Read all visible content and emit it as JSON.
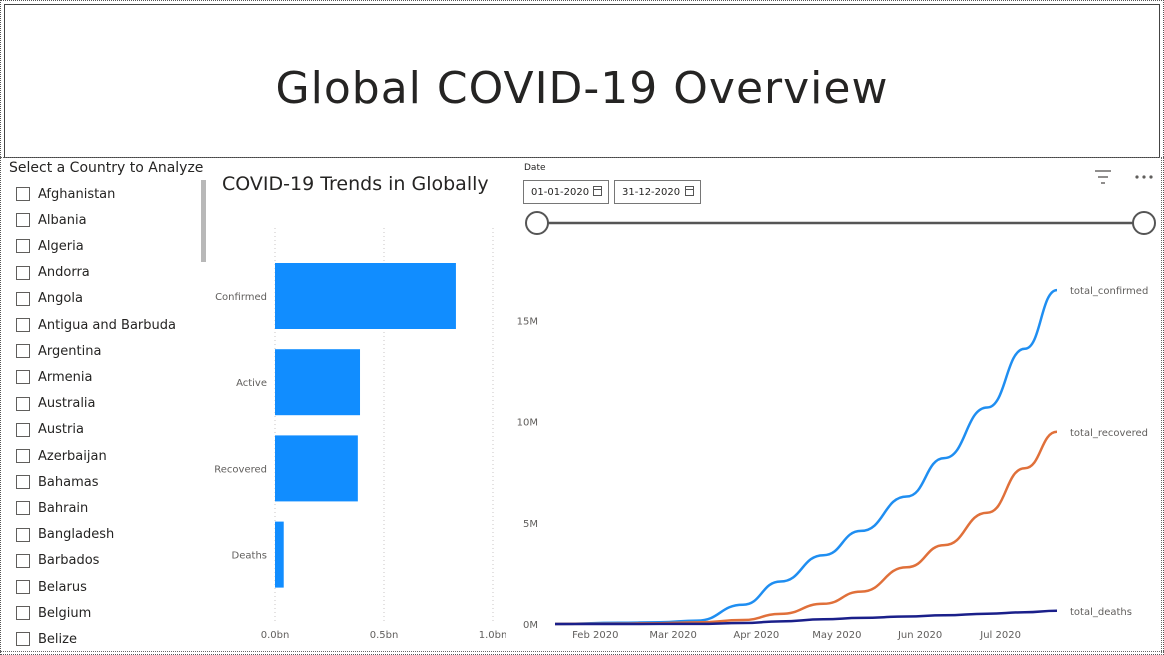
{
  "header": {
    "title": "Global COVID-19 Overview"
  },
  "slicer": {
    "title": "Select a Country to Analyze",
    "items": [
      "Afghanistan",
      "Albania",
      "Algeria",
      "Andorra",
      "Angola",
      "Antigua and Barbuda",
      "Argentina",
      "Armenia",
      "Australia",
      "Austria",
      "Azerbaijan",
      "Bahamas",
      "Bahrain",
      "Bangladesh",
      "Barbados",
      "Belarus",
      "Belgium",
      "Belize"
    ]
  },
  "bar_chart_title": "COVID-19 Trends in Globally",
  "date_slicer": {
    "label": "Date",
    "start": "01-01-2020",
    "end": "31-12-2020"
  },
  "colors": {
    "bar": "#118dff",
    "confirmed": "#1f8ef1",
    "recovered": "#e0703a",
    "deaths": "#1a1f8a",
    "axis_text": "#605e5c"
  },
  "icons": {
    "filter": "filter-icon",
    "more": "more-options-icon",
    "calendar": "calendar-icon"
  },
  "chart_data": [
    {
      "type": "bar",
      "orientation": "horizontal",
      "title": "COVID-19 Trends in Globally",
      "categories": [
        "Confirmed",
        "Active",
        "Recovered",
        "Deaths"
      ],
      "values": [
        0.83,
        0.39,
        0.38,
        0.04
      ],
      "unit": "bn",
      "xlim": [
        0,
        1.0
      ],
      "xticks": [
        "0.0bn",
        "0.5bn",
        "1.0bn"
      ],
      "grid": true
    },
    {
      "type": "line",
      "x_ticks": [
        "Feb 2020",
        "Mar 2020",
        "Apr 2020",
        "May 2020",
        "Jun 2020",
        "Jul 2020"
      ],
      "y_ticks": [
        "0M",
        "5M",
        "10M",
        "15M"
      ],
      "ylim": [
        0,
        17000000
      ],
      "x_start": "2020-01-22",
      "x_end": "2020-07-27",
      "series": [
        {
          "name": "total_confirmed",
          "x": [
            "2020-01-22",
            "2020-02-15",
            "2020-03-01",
            "2020-03-15",
            "2020-04-01",
            "2020-04-15",
            "2020-05-01",
            "2020-05-15",
            "2020-06-01",
            "2020-06-15",
            "2020-07-01",
            "2020-07-15",
            "2020-07-27"
          ],
          "values": [
            0,
            60000,
            90000,
            170000,
            950000,
            2100000,
            3400000,
            4600000,
            6300000,
            8200000,
            10700000,
            13600000,
            16500000
          ]
        },
        {
          "name": "total_recovered",
          "x": [
            "2020-01-22",
            "2020-02-15",
            "2020-03-01",
            "2020-03-15",
            "2020-04-01",
            "2020-04-15",
            "2020-05-01",
            "2020-05-15",
            "2020-06-01",
            "2020-06-15",
            "2020-07-01",
            "2020-07-15",
            "2020-07-27"
          ],
          "values": [
            0,
            20000,
            40000,
            80000,
            200000,
            500000,
            1000000,
            1600000,
            2800000,
            3900000,
            5500000,
            7700000,
            9500000
          ]
        },
        {
          "name": "total_deaths",
          "x": [
            "2020-01-22",
            "2020-02-15",
            "2020-03-01",
            "2020-03-15",
            "2020-04-01",
            "2020-04-15",
            "2020-05-01",
            "2020-05-15",
            "2020-06-01",
            "2020-06-15",
            "2020-07-01",
            "2020-07-15",
            "2020-07-27"
          ],
          "values": [
            0,
            2000,
            3000,
            6000,
            50000,
            130000,
            230000,
            300000,
            370000,
            430000,
            510000,
            580000,
            650000
          ]
        }
      ]
    }
  ]
}
